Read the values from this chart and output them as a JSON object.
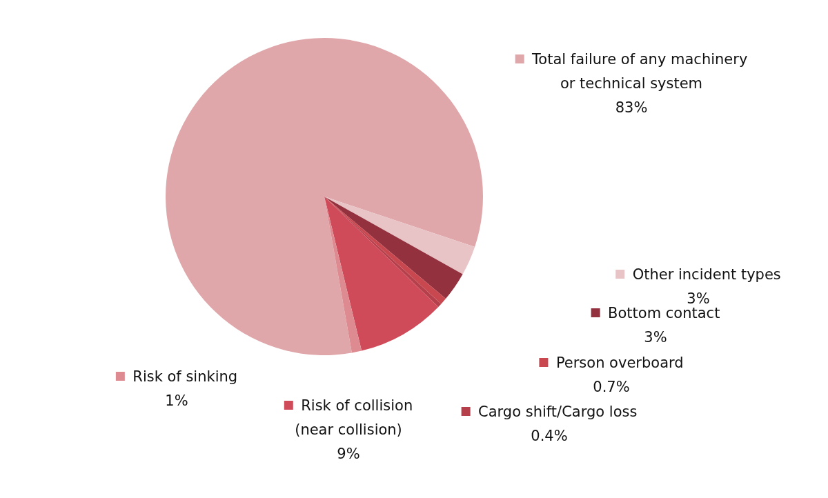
{
  "chart_data": {
    "type": "pie",
    "categories": [
      "Total failure of any machinery or technical system",
      "Other incident types",
      "Bottom contact",
      "Person overboard",
      "Cargo shift/Cargo loss",
      "Risk of collision (near collision)",
      "Risk of sinking"
    ],
    "values": [
      83,
      3,
      3,
      0.7,
      0.4,
      9,
      1
    ],
    "colors": [
      "#e0a7ab",
      "#e9c4c7",
      "#94313e",
      "#c9474f",
      "#b5404c",
      "#d04b5a",
      "#de8a91"
    ],
    "value_labels": [
      "83%",
      "3%",
      "3%",
      "0.7%",
      "0.4%",
      "9%",
      "1%"
    ],
    "legend": "right"
  }
}
